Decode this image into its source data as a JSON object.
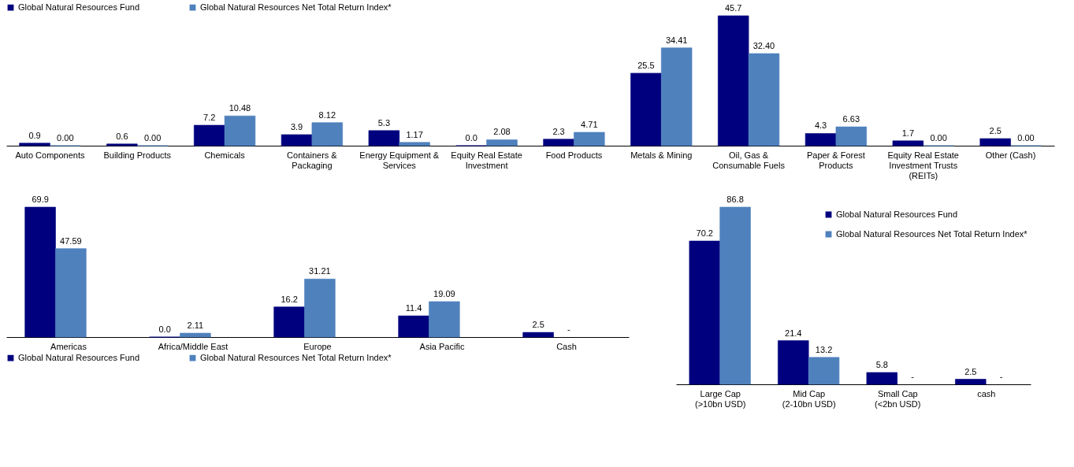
{
  "chart_data": [
    {
      "type": "bar",
      "categories": [
        "Auto Components",
        "Building Products",
        "Chemicals",
        "Containers & Packaging",
        "Energy Equipment & Services",
        "Equity Real Estate Investment",
        "Food Products",
        "Metals & Mining",
        "Oil, Gas & Consumable Fuels",
        "Paper & Forest Products",
        "Equity Real Estate Investment Trusts (REITs)",
        "Other (Cash)"
      ],
      "legend": "top",
      "series": [
        {
          "name": "Global Natural Resources Fund",
          "color": "#00007f",
          "values": [
            0.9,
            0.6,
            7.2,
            3.9,
            5.3,
            0.0,
            2.3,
            25.5,
            45.7,
            4.3,
            1.7,
            2.5
          ],
          "value_labels": [
            "0.9",
            "0.6",
            "7.2",
            "3.9",
            "5.3",
            "0.0",
            "2.3",
            "25.5",
            "45.7",
            "4.3",
            "1.7",
            "2.5"
          ]
        },
        {
          "name": "Global Natural Resources Net Total Return Index*",
          "color": "#4f81bd",
          "values": [
            0.0,
            0.0,
            10.48,
            8.12,
            1.17,
            2.08,
            4.71,
            34.41,
            32.4,
            6.63,
            0.0,
            0.0
          ],
          "value_labels": [
            "0.00",
            "0.00",
            "10.48",
            "8.12",
            "1.17",
            "2.08",
            "4.71",
            "34.41",
            "32.40",
            "6.63",
            "0.00",
            "0.00"
          ]
        }
      ]
    },
    {
      "type": "bar",
      "categories": [
        "Americas",
        "Africa/Middle East",
        "Europe",
        "Asia Pacific",
        "Cash"
      ],
      "legend": "bottom",
      "series": [
        {
          "name": "Global Natural Resources Fund",
          "color": "#00007f",
          "values": [
            69.9,
            0.0,
            16.2,
            11.4,
            2.5
          ],
          "value_labels": [
            "69.9",
            "0.0",
            "16.2",
            "11.4",
            "2.5"
          ]
        },
        {
          "name": "Global Natural Resources Net Total Return Index*",
          "color": "#4f81bd",
          "values": [
            47.59,
            2.11,
            31.21,
            19.09,
            null
          ],
          "value_labels": [
            "47.59",
            "2.11",
            "31.21",
            "19.09",
            "-"
          ]
        }
      ]
    },
    {
      "type": "bar",
      "categories": [
        "Large Cap (>10bn USD)",
        "Mid Cap (2-10bn USD)",
        "Small Cap  (<2bn USD)",
        "cash"
      ],
      "legend": "top right",
      "series": [
        {
          "name": "Global Natural Resources Fund",
          "color": "#00007f",
          "values": [
            70.2,
            21.4,
            5.8,
            2.5
          ],
          "value_labels": [
            "70.2",
            "21.4",
            "5.8",
            "2.5"
          ]
        },
        {
          "name": "Global Natural Resources Net Total Return Index*",
          "color": "#4f81bd",
          "values": [
            86.8,
            13.2,
            null,
            null
          ],
          "value_labels": [
            "86.8",
            "13.2",
            "-",
            "-"
          ]
        }
      ]
    }
  ]
}
